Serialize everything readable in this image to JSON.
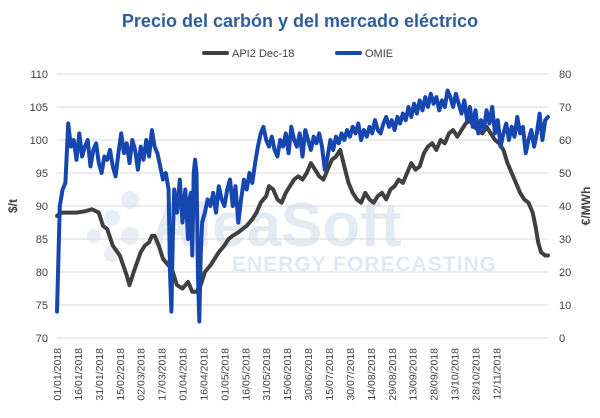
{
  "chart_data": {
    "type": "line",
    "title": "Precio del carbón y del mercado eléctrico",
    "ylabel_left": "$/t",
    "ylabel_right": "€/MWh",
    "ylim_left": [
      70,
      110
    ],
    "ylim_right": [
      0,
      80
    ],
    "yticks_left": [
      "70",
      "75",
      "80",
      "85",
      "90",
      "95",
      "100",
      "105",
      "110"
    ],
    "yticks_right": [
      "0",
      "10",
      "20",
      "30",
      "40",
      "50",
      "60",
      "70",
      "80"
    ],
    "xticks": [
      "01/01/2018",
      "16/01/2018",
      "31/01/2018",
      "15/02/2018",
      "02/03/2018",
      "17/03/2018",
      "01/04/2018",
      "16/04/2018",
      "01/05/2018",
      "16/05/2018",
      "31/05/2018",
      "15/06/2018",
      "30/06/2018",
      "15/07/2018",
      "30/07/2018",
      "14/08/2018",
      "29/08/2018",
      "13/09/2018",
      "28/09/2018",
      "13/10/2018",
      "28/10/2018",
      "12/11/2018"
    ],
    "grid": "horizontal",
    "legend_position": "top",
    "series": [
      {
        "name": "API2 Dec-18",
        "axis": "left",
        "color": "#404040",
        "points": [
          [
            0,
            88.5
          ],
          [
            3,
            89
          ],
          [
            8,
            89
          ],
          [
            14,
            89
          ],
          [
            20,
            89.2
          ],
          [
            25,
            89.5
          ],
          [
            30,
            89
          ],
          [
            33,
            87
          ],
          [
            36,
            86.5
          ],
          [
            40,
            84
          ],
          [
            45,
            82.5
          ],
          [
            50,
            79.5
          ],
          [
            52,
            78
          ],
          [
            55,
            80
          ],
          [
            60,
            83
          ],
          [
            63,
            84
          ],
          [
            66,
            84.5
          ],
          [
            68,
            85.5
          ],
          [
            70,
            85.5
          ],
          [
            73,
            84
          ],
          [
            76,
            82
          ],
          [
            80,
            81
          ],
          [
            83,
            80
          ],
          [
            86,
            78
          ],
          [
            90,
            77.5
          ],
          [
            94,
            78.5
          ],
          [
            97,
            77
          ],
          [
            100,
            77
          ],
          [
            103,
            78
          ],
          [
            106,
            80
          ],
          [
            110,
            81
          ],
          [
            113,
            82
          ],
          [
            116,
            83
          ],
          [
            120,
            84
          ],
          [
            123,
            85
          ],
          [
            126,
            85.5
          ],
          [
            130,
            86
          ],
          [
            133,
            86.5
          ],
          [
            136,
            87
          ],
          [
            140,
            88
          ],
          [
            143,
            89
          ],
          [
            146,
            90.5
          ],
          [
            148,
            91
          ],
          [
            150,
            91.5
          ],
          [
            152,
            93
          ],
          [
            155,
            92.5
          ],
          [
            158,
            91
          ],
          [
            161,
            90.5
          ],
          [
            164,
            92
          ],
          [
            167,
            93
          ],
          [
            170,
            94
          ],
          [
            173,
            94.5
          ],
          [
            176,
            94
          ],
          [
            179,
            95
          ],
          [
            182,
            96.5
          ],
          [
            185,
            95.5
          ],
          [
            188,
            94.5
          ],
          [
            191,
            94
          ],
          [
            194,
            95.5
          ],
          [
            197,
            97
          ],
          [
            200,
            97.5
          ],
          [
            203,
            98.5
          ],
          [
            206,
            96
          ],
          [
            209,
            93.5
          ],
          [
            212,
            92
          ],
          [
            215,
            91
          ],
          [
            218,
            90.5
          ],
          [
            221,
            92
          ],
          [
            224,
            91
          ],
          [
            227,
            90.5
          ],
          [
            230,
            91.5
          ],
          [
            233,
            92
          ],
          [
            236,
            91
          ],
          [
            239,
            92.5
          ],
          [
            242,
            93
          ],
          [
            245,
            94
          ],
          [
            248,
            93.5
          ],
          [
            251,
            95
          ],
          [
            254,
            96.5
          ],
          [
            257,
            95.5
          ],
          [
            260,
            96
          ],
          [
            263,
            98
          ],
          [
            266,
            99
          ],
          [
            269,
            99.5
          ],
          [
            272,
            98.5
          ],
          [
            275,
            100
          ],
          [
            278,
            99.5
          ],
          [
            281,
            101
          ],
          [
            284,
            101.5
          ],
          [
            287,
            100.5
          ],
          [
            290,
            101.5
          ],
          [
            293,
            102.5
          ],
          [
            296,
            103
          ],
          [
            299,
            102
          ],
          [
            302,
            101.5
          ],
          [
            305,
            101
          ],
          [
            308,
            102
          ],
          [
            311,
            101
          ],
          [
            314,
            100
          ],
          [
            317,
            99.5
          ],
          [
            320,
            98.5
          ],
          [
            323,
            96.5
          ],
          [
            326,
            95
          ],
          [
            329,
            93.5
          ],
          [
            332,
            92
          ],
          [
            335,
            91
          ],
          [
            338,
            90.5
          ],
          [
            341,
            89
          ],
          [
            343,
            87
          ],
          [
            345,
            84.5
          ],
          [
            347,
            83
          ],
          [
            350,
            82.5
          ],
          [
            352,
            82.5
          ]
        ]
      },
      {
        "name": "OMIE",
        "axis": "right",
        "color": "#1646b0",
        "points": [
          [
            0,
            8
          ],
          [
            2,
            40
          ],
          [
            4,
            45
          ],
          [
            6,
            47
          ],
          [
            8,
            65
          ],
          [
            10,
            58
          ],
          [
            12,
            60
          ],
          [
            14,
            54
          ],
          [
            16,
            62
          ],
          [
            18,
            55
          ],
          [
            20,
            58
          ],
          [
            22,
            60
          ],
          [
            24,
            52
          ],
          [
            26,
            57
          ],
          [
            28,
            59
          ],
          [
            30,
            53
          ],
          [
            32,
            50
          ],
          [
            34,
            55
          ],
          [
            36,
            54
          ],
          [
            38,
            57
          ],
          [
            40,
            52
          ],
          [
            42,
            49
          ],
          [
            44,
            56
          ],
          [
            46,
            62
          ],
          [
            48,
            56
          ],
          [
            50,
            59
          ],
          [
            52,
            53
          ],
          [
            54,
            60
          ],
          [
            56,
            57
          ],
          [
            58,
            51
          ],
          [
            60,
            58
          ],
          [
            62,
            54
          ],
          [
            64,
            60
          ],
          [
            66,
            55
          ],
          [
            68,
            63
          ],
          [
            70,
            58
          ],
          [
            72,
            56
          ],
          [
            74,
            52
          ],
          [
            76,
            48
          ],
          [
            78,
            50
          ],
          [
            80,
            45
          ],
          [
            81,
            20
          ],
          [
            82,
            8
          ],
          [
            83,
            30
          ],
          [
            84,
            45
          ],
          [
            86,
            38
          ],
          [
            88,
            48
          ],
          [
            90,
            35
          ],
          [
            92,
            45
          ],
          [
            94,
            30
          ],
          [
            95,
            42
          ],
          [
            96,
            44
          ],
          [
            97,
            25
          ],
          [
            98,
            50
          ],
          [
            99,
            54
          ],
          [
            100,
            50
          ],
          [
            101,
            20
          ],
          [
            102,
            5
          ],
          [
            103,
            25
          ],
          [
            104,
            35
          ],
          [
            106,
            38
          ],
          [
            108,
            42
          ],
          [
            110,
            40
          ],
          [
            112,
            44
          ],
          [
            114,
            38
          ],
          [
            116,
            46
          ],
          [
            118,
            42
          ],
          [
            120,
            40
          ],
          [
            122,
            45
          ],
          [
            124,
            48
          ],
          [
            126,
            40
          ],
          [
            128,
            46
          ],
          [
            130,
            35
          ],
          [
            132,
            42
          ],
          [
            134,
            48
          ],
          [
            136,
            45
          ],
          [
            138,
            50
          ],
          [
            140,
            47
          ],
          [
            142,
            53
          ],
          [
            144,
            58
          ],
          [
            146,
            62
          ],
          [
            148,
            64
          ],
          [
            150,
            60
          ],
          [
            152,
            58
          ],
          [
            154,
            61
          ],
          [
            156,
            57
          ],
          [
            158,
            55
          ],
          [
            160,
            60
          ],
          [
            162,
            58
          ],
          [
            164,
            62
          ],
          [
            166,
            56
          ],
          [
            168,
            64
          ],
          [
            170,
            60
          ],
          [
            172,
            58
          ],
          [
            174,
            62
          ],
          [
            176,
            55
          ],
          [
            178,
            63
          ],
          [
            180,
            60
          ],
          [
            182,
            57
          ],
          [
            184,
            61
          ],
          [
            186,
            59
          ],
          [
            188,
            62
          ],
          [
            190,
            58
          ],
          [
            192,
            51
          ],
          [
            194,
            55
          ],
          [
            196,
            60
          ],
          [
            198,
            57
          ],
          [
            200,
            61
          ],
          [
            202,
            59
          ],
          [
            204,
            62
          ],
          [
            206,
            60
          ],
          [
            208,
            63
          ],
          [
            210,
            61
          ],
          [
            212,
            64
          ],
          [
            214,
            62
          ],
          [
            216,
            65
          ],
          [
            218,
            60
          ],
          [
            220,
            63
          ],
          [
            222,
            61
          ],
          [
            224,
            64
          ],
          [
            226,
            62
          ],
          [
            228,
            66
          ],
          [
            230,
            63
          ],
          [
            232,
            62
          ],
          [
            234,
            65
          ],
          [
            236,
            67
          ],
          [
            238,
            64
          ],
          [
            240,
            66
          ],
          [
            242,
            63
          ],
          [
            244,
            67
          ],
          [
            246,
            65
          ],
          [
            248,
            68
          ],
          [
            250,
            66
          ],
          [
            252,
            70
          ],
          [
            254,
            67
          ],
          [
            256,
            71
          ],
          [
            258,
            68
          ],
          [
            260,
            72
          ],
          [
            262,
            69
          ],
          [
            264,
            73
          ],
          [
            266,
            70
          ],
          [
            268,
            74
          ],
          [
            270,
            71
          ],
          [
            272,
            73
          ],
          [
            274,
            69
          ],
          [
            276,
            72
          ],
          [
            278,
            70
          ],
          [
            280,
            75
          ],
          [
            282,
            73
          ],
          [
            284,
            70
          ],
          [
            286,
            74
          ],
          [
            288,
            71
          ],
          [
            290,
            68
          ],
          [
            292,
            72
          ],
          [
            294,
            66
          ],
          [
            296,
            70
          ],
          [
            298,
            64
          ],
          [
            300,
            69
          ],
          [
            302,
            62
          ],
          [
            304,
            66
          ],
          [
            306,
            63
          ],
          [
            308,
            69
          ],
          [
            310,
            65
          ],
          [
            312,
            70
          ],
          [
            314,
            62
          ],
          [
            316,
            66
          ],
          [
            318,
            58
          ],
          [
            320,
            62
          ],
          [
            322,
            65
          ],
          [
            324,
            60
          ],
          [
            326,
            64
          ],
          [
            328,
            61
          ],
          [
            330,
            67
          ],
          [
            332,
            62
          ],
          [
            334,
            64
          ],
          [
            336,
            56
          ],
          [
            338,
            60
          ],
          [
            340,
            63
          ],
          [
            342,
            58
          ],
          [
            344,
            62
          ],
          [
            346,
            68
          ],
          [
            348,
            60
          ],
          [
            350,
            66
          ],
          [
            352,
            67
          ]
        ]
      }
    ]
  },
  "watermark": {
    "line1": "AleaSoft",
    "line2": "ENERGY FORECASTING"
  }
}
